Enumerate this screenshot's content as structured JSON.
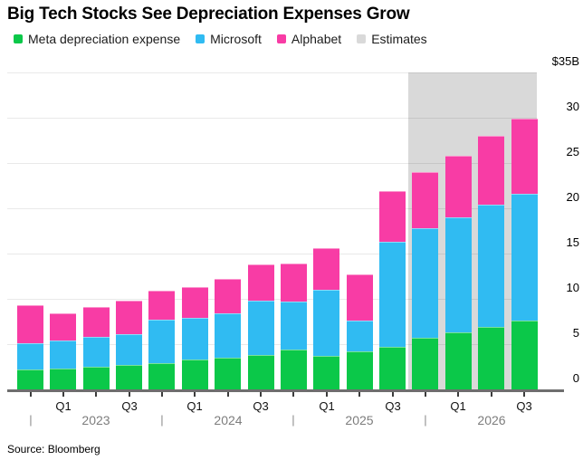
{
  "title": "Big Tech Stocks See Depreciation Expenses Grow",
  "source": "Source: Bloomberg",
  "legend": {
    "items": [
      {
        "key": "meta",
        "label": "Meta depreciation expense",
        "color": "#0BC849"
      },
      {
        "key": "microsoft",
        "label": "Microsoft",
        "color": "#30BBF2"
      },
      {
        "key": "alphabet",
        "label": "Alphabet",
        "color": "#F83CA5"
      },
      {
        "key": "estimates",
        "label": "Estimates",
        "color": "#D9D9D9"
      }
    ]
  },
  "chart_data": {
    "type": "bar",
    "stacked": true,
    "title": "Big Tech Stocks See Depreciation Expenses Grow",
    "unit": "$B",
    "categories": [
      "Q4 2022",
      "Q1 2023",
      "Q2 2023",
      "Q3 2023",
      "Q4 2023",
      "Q1 2024",
      "Q2 2024",
      "Q3 2024",
      "Q4 2024",
      "Q1 2025",
      "Q2 2025",
      "Q3 2025",
      "Q4 2025",
      "Q1 2026",
      "Q2 2026",
      "Q3 2026"
    ],
    "series": [
      {
        "name": "Meta depreciation expense",
        "color": "#0BC849",
        "values": [
          2.2,
          2.3,
          2.5,
          2.7,
          2.9,
          3.3,
          3.5,
          3.8,
          4.4,
          3.7,
          4.2,
          4.7,
          5.7,
          6.3,
          6.9,
          7.6
        ]
      },
      {
        "name": "Microsoft",
        "color": "#30BBF2",
        "values": [
          2.9,
          3.1,
          3.3,
          3.4,
          4.8,
          4.6,
          4.9,
          6.0,
          5.3,
          7.3,
          3.4,
          11.6,
          12.1,
          12.7,
          13.5,
          14.0
        ]
      },
      {
        "name": "Alphabet",
        "color": "#F83CA5",
        "values": [
          4.2,
          3.0,
          3.3,
          3.7,
          3.2,
          3.4,
          3.8,
          4.0,
          4.2,
          4.6,
          5.1,
          5.6,
          6.2,
          6.8,
          7.6,
          8.3
        ]
      }
    ],
    "totals": [
      9.3,
      8.4,
      9.1,
      9.8,
      10.9,
      11.3,
      12.2,
      13.8,
      13.9,
      15.6,
      12.7,
      21.9,
      24.0,
      25.8,
      28.0,
      29.9
    ],
    "estimates": {
      "label": "Estimates",
      "start_category": "Q4 2025",
      "start_index": 12,
      "color": "#D9D9D9"
    },
    "ylim": [
      0,
      35
    ],
    "grid": true,
    "legend_position": "top",
    "y_axis": {
      "side": "right",
      "ticks": [
        {
          "label": "0",
          "value": 0
        },
        {
          "label": "5",
          "value": 5
        },
        {
          "label": "10",
          "value": 10
        },
        {
          "label": "15",
          "value": 15
        },
        {
          "label": "20",
          "value": 20
        },
        {
          "label": "25",
          "value": 25
        },
        {
          "label": "30",
          "value": 30
        },
        {
          "label": "$35B",
          "value": 35
        }
      ]
    },
    "x_axis": {
      "quarter_labels": [
        {
          "index": 1,
          "label": "Q1"
        },
        {
          "index": 3,
          "label": "Q3"
        },
        {
          "index": 5,
          "label": "Q1"
        },
        {
          "index": 7,
          "label": "Q3"
        },
        {
          "index": 9,
          "label": "Q1"
        },
        {
          "index": 11,
          "label": "Q3"
        },
        {
          "index": 13,
          "label": "Q1"
        },
        {
          "index": 15,
          "label": "Q3"
        }
      ],
      "year_labels": [
        {
          "index": 2,
          "label": "2023"
        },
        {
          "index": 6,
          "label": "2024"
        },
        {
          "index": 10,
          "label": "2025"
        },
        {
          "index": 14,
          "label": "2026"
        }
      ],
      "year_separator_indices": [
        0,
        4,
        8,
        12
      ],
      "year_separator_glyph": "|"
    }
  }
}
